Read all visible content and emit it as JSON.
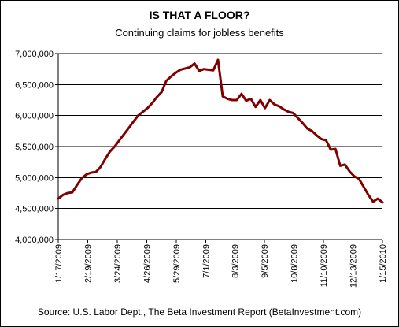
{
  "chart_data": {
    "type": "line",
    "title": "IS THAT A FLOOR?",
    "subtitle": "Continuing claims for jobless benefits",
    "source": "Source: U.S. Labor Dept., The Beta Investment Report (BetaInvestment.com)",
    "ylim": [
      4000000,
      7000000
    ],
    "yticks": [
      4000000,
      4500000,
      5000000,
      5500000,
      6000000,
      6500000,
      7000000
    ],
    "ytick_labels": [
      "4,000,000",
      "4,500,000",
      "5,000,000",
      "5,500,000",
      "6,000,000",
      "6,500,000",
      "7,000,000"
    ],
    "xtick_labels": [
      "1/17/2009",
      "2/19/2009",
      "3/24/2009",
      "4/26/2009",
      "5/29/2009",
      "7/1/2009",
      "8/3/2009",
      "9/5/2009",
      "10/8/2009",
      "11/10/2009",
      "12/13/2009",
      "1/15/2010"
    ],
    "grid": "horizontal",
    "line_color": "#800000",
    "series": [
      {
        "values": [
          4660000,
          4720000,
          4750000,
          4760000,
          4880000,
          4990000,
          5050000,
          5080000,
          5090000,
          5170000,
          5300000,
          5420000,
          5500000,
          5600000,
          5700000,
          5800000,
          5900000,
          6000000,
          6060000,
          6120000,
          6200000,
          6300000,
          6380000,
          6560000,
          6630000,
          6690000,
          6740000,
          6760000,
          6780000,
          6840000,
          6720000,
          6750000,
          6740000,
          6730000,
          6900000,
          6310000,
          6270000,
          6250000,
          6250000,
          6350000,
          6240000,
          6270000,
          6140000,
          6250000,
          6120000,
          6250000,
          6180000,
          6150000,
          6100000,
          6060000,
          6040000,
          5960000,
          5880000,
          5790000,
          5750000,
          5680000,
          5620000,
          5600000,
          5450000,
          5460000,
          5190000,
          5210000,
          5100000,
          5020000,
          4980000,
          4850000,
          4720000,
          4610000,
          4660000,
          4600000
        ]
      }
    ]
  }
}
